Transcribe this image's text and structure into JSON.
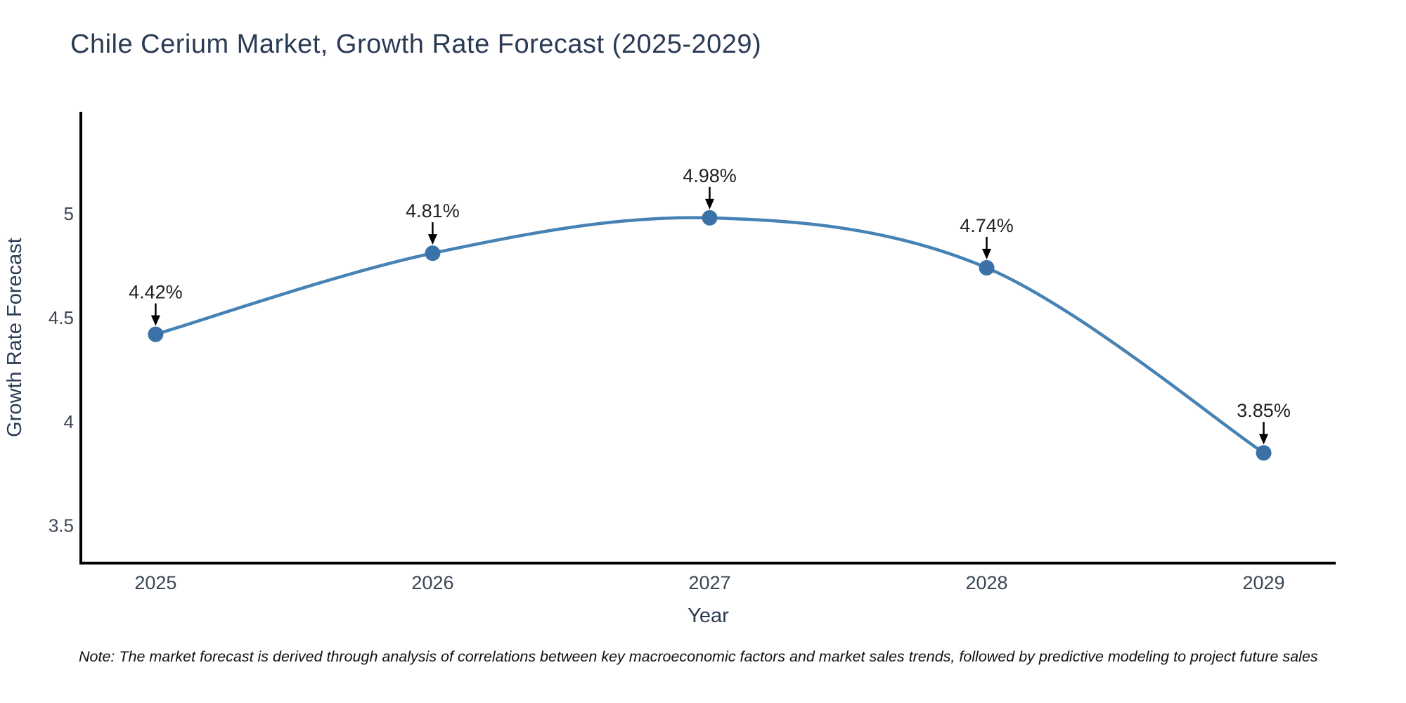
{
  "figure": {
    "title": "Chile Cerium Market, Growth Rate Forecast (2025-2029)",
    "note": "Note: The market forecast is derived through analysis of correlations between key macroeconomic factors and market sales trends, followed by predictive modeling to project future sales"
  },
  "chart_data": {
    "type": "line",
    "title": "Chile Cerium Market, Growth Rate Forecast (2025-2029)",
    "xlabel": "Year",
    "ylabel": "Growth Rate Forecast",
    "x": [
      2025,
      2026,
      2027,
      2028,
      2029
    ],
    "values": [
      4.42,
      4.81,
      4.98,
      4.74,
      3.85
    ],
    "point_labels": [
      "4.42%",
      "4.81%",
      "4.98%",
      "4.74%",
      "3.85%"
    ],
    "xtick_labels": [
      "2025",
      "2026",
      "2027",
      "2028",
      "2029"
    ],
    "yticks": [
      3.5,
      4,
      4.5,
      5
    ],
    "ytick_labels": [
      "3.5",
      "4",
      "4.5",
      "5"
    ],
    "xlim": [
      2024.73,
      2029.26
    ],
    "ylim": [
      3.32,
      5.49
    ],
    "grid": false,
    "legend": false,
    "curve": "spline",
    "annotations_arrow": "down-black",
    "style": {
      "line_color": "#4682b4",
      "marker_color": "#3a72a8",
      "axis_color": "#000000",
      "tick_label_color": "#3b4654",
      "axis_title_color": "#2b3a55",
      "annotation_text_color": "#222222",
      "arrow_color": "#000000",
      "background": "#ffffff"
    }
  }
}
